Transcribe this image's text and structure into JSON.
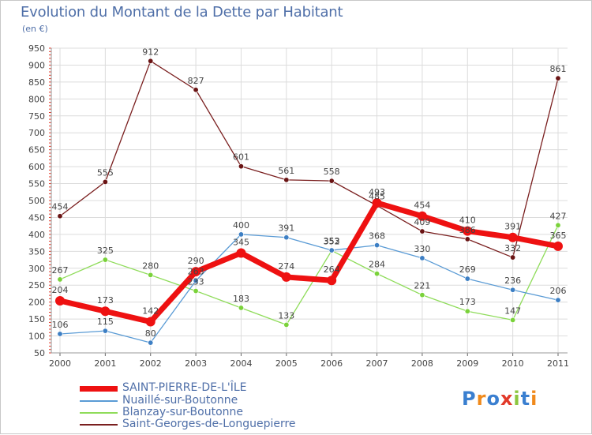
{
  "title": "Evolution du Montant de la Dette par Habitant",
  "subtitle": "(en €)",
  "brand": {
    "text": "Proxiti",
    "letters": [
      {
        "ch": "P",
        "color": "#3a7fd0"
      },
      {
        "ch": "r",
        "color": "#f08a1c"
      },
      {
        "ch": "o",
        "color": "#3a7fd0"
      },
      {
        "ch": "x",
        "color": "#e23a2a"
      },
      {
        "ch": "i",
        "color": "#8cc63f"
      },
      {
        "ch": "t",
        "color": "#3a7fd0"
      },
      {
        "ch": "i",
        "color": "#f08a1c"
      }
    ]
  },
  "chart_data": {
    "type": "line",
    "title": "Evolution du Montant de la Dette par Habitant",
    "subtitle": "(en €)",
    "x": [
      "2000",
      "2001",
      "2002",
      "2003",
      "2004",
      "2005",
      "2006",
      "2007",
      "2008",
      "2009",
      "2010",
      "2011"
    ],
    "ylim": [
      50,
      950
    ],
    "yticks": [
      50,
      100,
      150,
      200,
      250,
      300,
      350,
      400,
      450,
      500,
      550,
      600,
      650,
      700,
      750,
      800,
      850,
      900,
      950
    ],
    "grid": true,
    "legend_position": "bottom-left",
    "series": [
      {
        "name": "Saint-Georges-de-Longuepierre",
        "color": "#7a1f1f",
        "marker": "#6a1414",
        "width": 1.3,
        "values": [
          454,
          555,
          912,
          827,
          601,
          561,
          558,
          485,
          409,
          386,
          332,
          861
        ],
        "labels": [
          "454",
          "555",
          "912",
          "827",
          "601",
          "561",
          "558",
          "485",
          "409",
          "386",
          "332",
          "861"
        ]
      },
      {
        "name": "Blanzay-sur-Boutonne",
        "color": "#8fdc5a",
        "marker": "#7ad23a",
        "width": 1.3,
        "values": [
          267,
          325,
          280,
          233,
          183,
          133,
          352,
          284,
          221,
          173,
          147,
          427
        ],
        "labels": [
          "267",
          "325",
          "280",
          "233",
          "183",
          "133",
          "352",
          "284",
          "221",
          "173",
          "147",
          "427"
        ]
      },
      {
        "name": "Nuaillé-sur-Boutonne",
        "color": "#5a9bd5",
        "marker": "#3d7fc4",
        "width": 1.3,
        "values": [
          106,
          115,
          80,
          263,
          400,
          391,
          353,
          368,
          330,
          269,
          236,
          206
        ],
        "labels": [
          "106",
          "115",
          "80",
          "263",
          "400",
          "391",
          "353",
          "368",
          "330",
          "269",
          "236",
          "206"
        ]
      },
      {
        "name": "SAINT-PIERRE-DE-L'ÎLE",
        "color": "#ee1111",
        "marker": "#ee1111",
        "width": 7,
        "values": [
          204,
          173,
          142,
          290,
          345,
          274,
          264,
          493,
          454,
          410,
          391,
          365
        ],
        "labels": [
          "204",
          "173",
          "142",
          "290",
          "345",
          "274",
          "264",
          "493",
          "454",
          "410",
          "391",
          "365"
        ]
      }
    ]
  },
  "legend": [
    {
      "name": "SAINT-PIERRE-DE-L'ÎLE",
      "color": "#ee1111",
      "thickness": 7
    },
    {
      "name": "Nuaillé-sur-Boutonne",
      "color": "#5a9bd5",
      "thickness": 2
    },
    {
      "name": "Blanzay-sur-Boutonne",
      "color": "#8fdc5a",
      "thickness": 2
    },
    {
      "name": "Saint-Georges-de-Longuepierre",
      "color": "#7a1f1f",
      "thickness": 2
    }
  ]
}
